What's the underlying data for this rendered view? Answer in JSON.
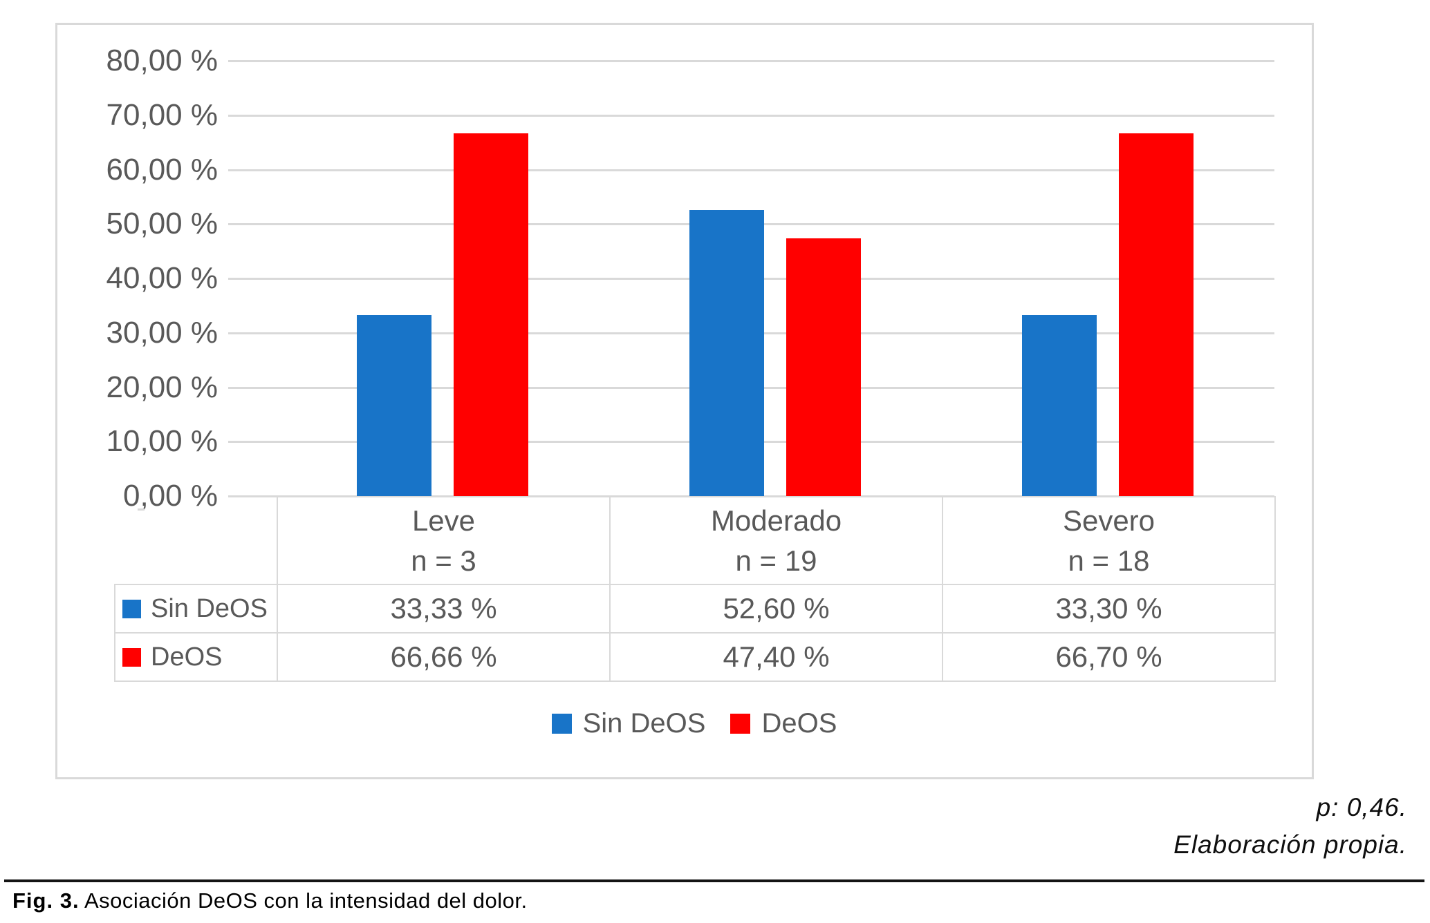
{
  "page": {
    "notes": [
      "p: 0,46.",
      "Elaboración propia."
    ],
    "caption": {
      "label": "Fig. 3.",
      "text": "Asociación DeOS con la intensidad del dolor."
    }
  },
  "colors": {
    "sin_deos_blue": "#1874C8",
    "deos_red": "#FF0000",
    "grid_gray": "#D9D9D9",
    "label_gray": "#595959"
  },
  "chart_data": {
    "type": "bar",
    "title": "",
    "xlabel": "",
    "ylabel": "",
    "categories": [
      "Leve",
      "Moderado",
      "Severo"
    ],
    "category_sublabels": [
      "n = 3",
      "n = 19",
      "n = 18"
    ],
    "series": [
      {
        "name": "Sin DeOS",
        "color": "#1874C8",
        "values": [
          33.33,
          52.6,
          33.3
        ],
        "value_labels": [
          "33,33 %",
          "52,60 %",
          "33,30 %"
        ]
      },
      {
        "name": "DeOS",
        "color": "#FF0000",
        "values": [
          66.66,
          47.4,
          66.7
        ],
        "value_labels": [
          "66,66 %",
          "47,40 %",
          "66,70 %"
        ]
      }
    ],
    "ylim": [
      0,
      80
    ],
    "ytick_step": 10,
    "ytick_labels": [
      "0,00 %",
      "10,00 %",
      "20,00 %",
      "30,00 %",
      "40,00 %",
      "50,00 %",
      "60,00 %",
      "70,00 %",
      "80,00 %"
    ],
    "grid": true,
    "legend_position": "bottom",
    "data_table_shown": true
  }
}
